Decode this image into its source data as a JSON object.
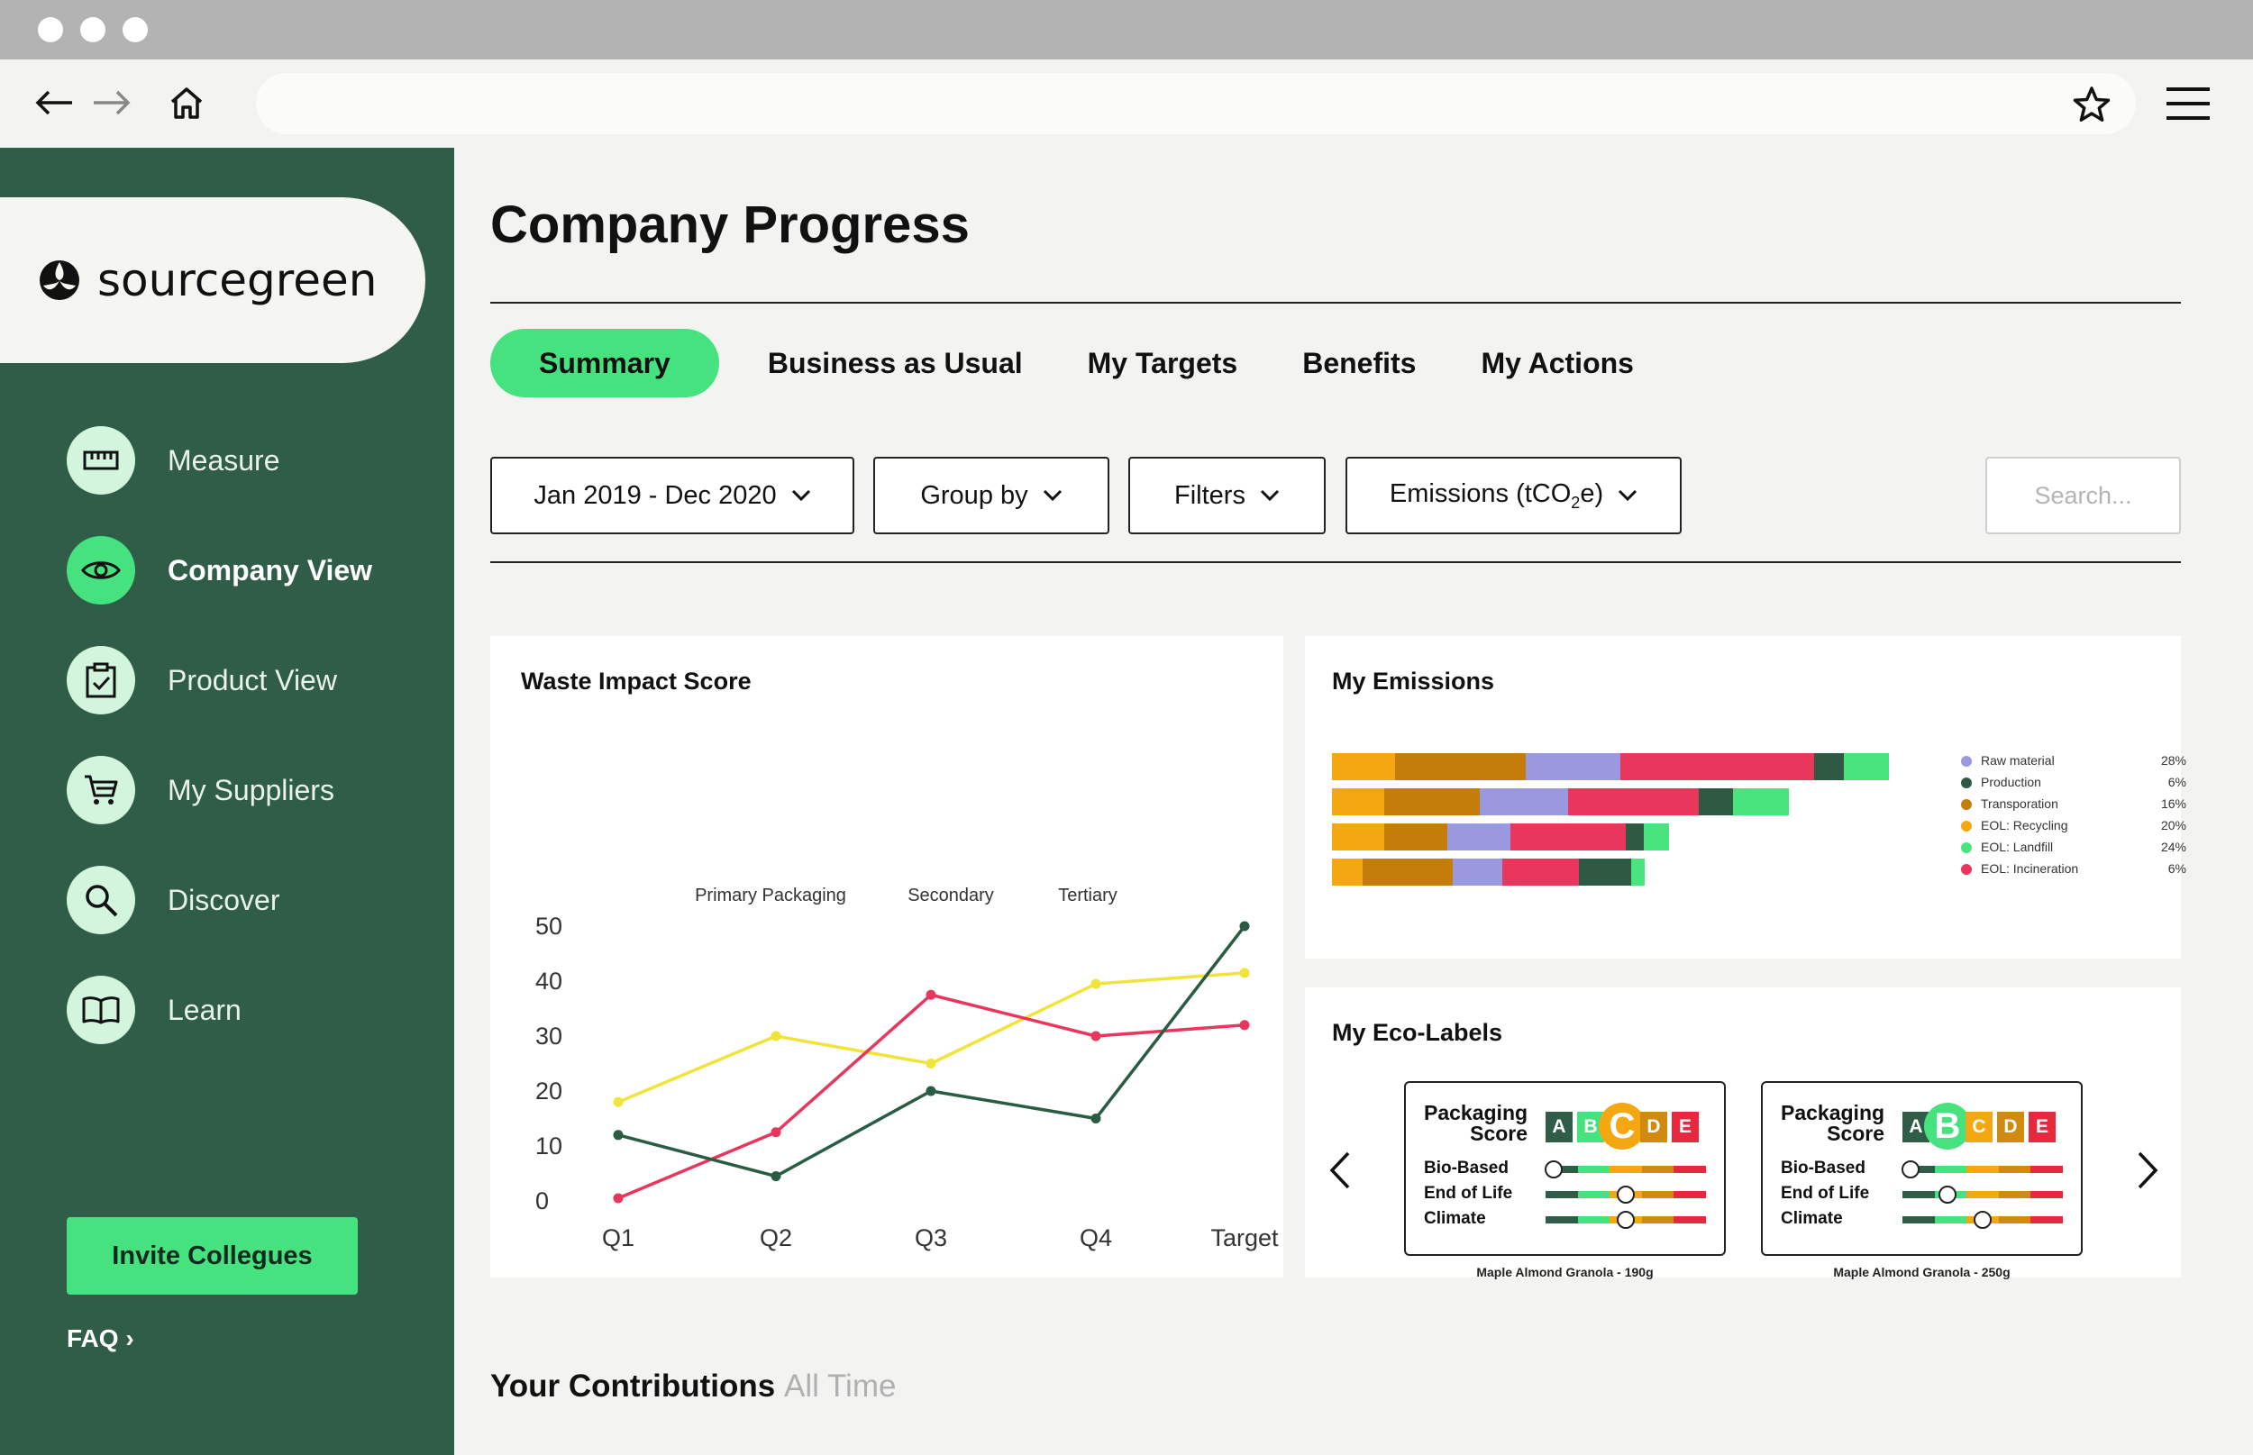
{
  "browser": {
    "url": "",
    "back_icon": "arrow-left-icon",
    "forward_icon": "arrow-right-icon",
    "home_icon": "home-icon",
    "bookmark_icon": "star-icon",
    "menu_icon": "hamburger-menu-icon"
  },
  "sidebar": {
    "logo_text": "sourcegreen",
    "items": [
      {
        "label": "Measure",
        "icon": "ruler-icon",
        "active": false
      },
      {
        "label": "Company View",
        "icon": "eye-icon",
        "active": true
      },
      {
        "label": "Product View",
        "icon": "clipboard-check-icon",
        "active": false
      },
      {
        "label": "My Suppliers",
        "icon": "cart-icon",
        "active": false
      },
      {
        "label": "Discover",
        "icon": "search-icon",
        "active": false
      },
      {
        "label": "Learn",
        "icon": "book-icon",
        "active": false
      }
    ],
    "invite_label": "Invite Collegues",
    "faq_label": "FAQ ›"
  },
  "main": {
    "title": "Company Progress",
    "tabs": [
      {
        "label": "Summary",
        "active": true
      },
      {
        "label": "Business as Usual",
        "active": false
      },
      {
        "label": "My Targets",
        "active": false
      },
      {
        "label": "Benefits",
        "active": false
      },
      {
        "label": "My Actions",
        "active": false
      }
    ],
    "filters": {
      "date_range": "Jan 2019 - Dec 2020",
      "group_by": "Group by",
      "filters": "Filters",
      "metric_prefix": "Emissions (tCO",
      "metric_sub": "2",
      "metric_suffix": "e)"
    },
    "search_placeholder": "Search...",
    "contributions_title": "Your Contributions",
    "contributions_period": "All Time"
  },
  "colors": {
    "sidebar_bg": "#2f5d48",
    "accent": "#46e27f",
    "yellow": "#f0e33a",
    "pink": "#e8365c",
    "dark_green": "#295c43",
    "orange": "#f5a712",
    "brown": "#c47d0a",
    "lavender": "#9a98df",
    "mid_green": "#2e5a44",
    "light_green": "#4ae47e",
    "grade_A": "#2f5d48",
    "grade_B": "#46e27f",
    "grade_C": "#f5a712",
    "grade_D": "#d08a10",
    "grade_E": "#e8283e"
  },
  "chart_data": [
    {
      "type": "line",
      "title": "Waste Impact Score",
      "categories": [
        "Q1",
        "Q2",
        "Q3",
        "Q4",
        "Target"
      ],
      "annotations": [
        "Primary Packaging",
        "Secondary",
        "Tertiary"
      ],
      "ylim": [
        0,
        50
      ],
      "yticks": [
        0,
        10,
        20,
        30,
        40,
        50
      ],
      "grid": false,
      "series": [
        {
          "color": "#f0e33a",
          "values": [
            18,
            30,
            25,
            39.5,
            41.5
          ]
        },
        {
          "color": "#e8365c",
          "values": [
            0.5,
            12.5,
            37.5,
            30,
            32
          ]
        },
        {
          "color": "#295c43",
          "values": [
            12,
            4.5,
            20,
            15,
            50
          ]
        }
      ]
    },
    {
      "type": "bar",
      "title": "My Emissions",
      "orientation": "horizontal-stacked",
      "legend_placement": "right",
      "legend": [
        {
          "name": "Raw material",
          "percent": "28%",
          "color": "#9a98df"
        },
        {
          "name": "Production",
          "percent": "6%",
          "color": "#2e5a44"
        },
        {
          "name": "Transporation",
          "percent": "16%",
          "color": "#c47d0a"
        },
        {
          "name": "EOL: Recycling",
          "percent": "20%",
          "color": "#f5a712"
        },
        {
          "name": "EOL: Landfill",
          "percent": "24%",
          "color": "#4ae47e"
        },
        {
          "name": "EOL: Incineration",
          "percent": "6%",
          "color": "#e8365c"
        }
      ],
      "stack_order": [
        "EOL: Recycling",
        "Transporation",
        "Raw material",
        "EOL: Incineration",
        "Production",
        "EOL: Landfill"
      ],
      "rows": [
        [
          70,
          145,
          105,
          215,
          33,
          50
        ],
        [
          58,
          106,
          98,
          145,
          38,
          62
        ],
        [
          58,
          70,
          70,
          128,
          20,
          28
        ],
        [
          34,
          100,
          55,
          85,
          58,
          15
        ]
      ]
    }
  ],
  "eco_labels": {
    "title": "My Eco-Labels",
    "prev_icon": "chevron-left-icon",
    "next_icon": "chevron-right-icon",
    "grades": [
      "A",
      "B",
      "C",
      "D",
      "E"
    ],
    "criteria": [
      "Bio-Based",
      "End of Life",
      "Climate"
    ],
    "cards": [
      {
        "heading_1": "Packaging",
        "heading_2": "Score",
        "grade": "C",
        "levels": [
          0.05,
          0.5,
          0.5
        ],
        "caption": "Maple Almond Granola - 190g"
      },
      {
        "heading_1": "Packaging",
        "heading_2": "Score",
        "grade": "B",
        "levels": [
          0.05,
          0.28,
          0.5
        ],
        "caption": "Maple Almond Granola - 250g"
      }
    ]
  }
}
